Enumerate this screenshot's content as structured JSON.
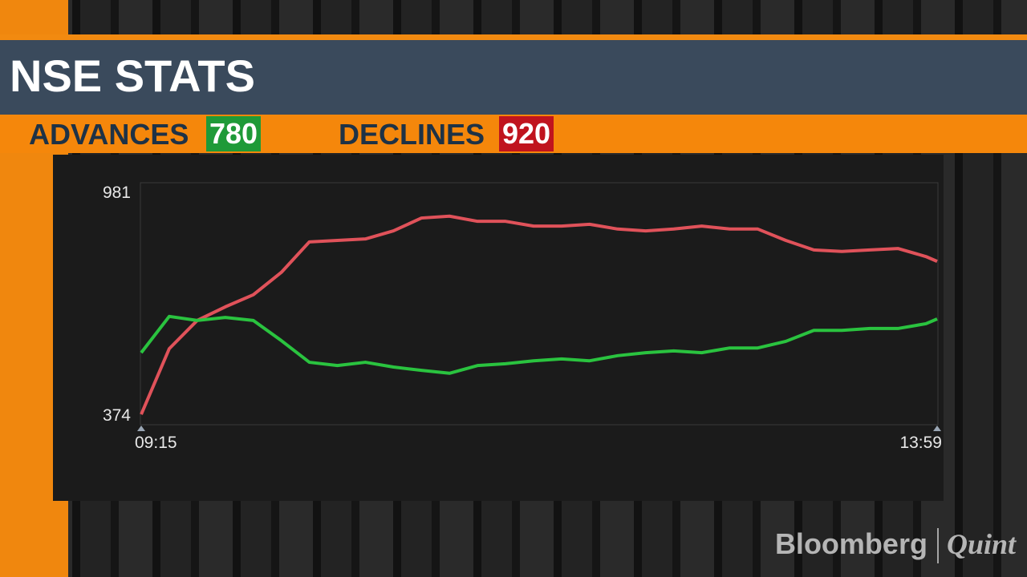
{
  "header": {
    "title": "NSE STATS"
  },
  "stats": {
    "advances": {
      "label": "ADVANCES",
      "value": 780
    },
    "declines": {
      "label": "DECLINES",
      "value": 920
    }
  },
  "logo": {
    "left": "Bloomberg",
    "right": "Quint"
  },
  "chart_data": {
    "type": "line",
    "x": [
      "09:15",
      "09:25",
      "09:35",
      "09:45",
      "09:55",
      "10:05",
      "10:15",
      "10:25",
      "10:35",
      "10:45",
      "10:55",
      "11:05",
      "11:15",
      "11:25",
      "11:35",
      "11:45",
      "11:55",
      "12:05",
      "12:15",
      "12:25",
      "12:35",
      "12:45",
      "12:55",
      "13:05",
      "13:15",
      "13:25",
      "13:35",
      "13:45",
      "13:55",
      "13:59"
    ],
    "xticks": [
      "09:15",
      "13:59"
    ],
    "series": [
      {
        "name": "Declines",
        "color": "#e0525a",
        "values": [
          376,
          555,
          632,
          669,
          702,
          763,
          846,
          850,
          854,
          876,
          911,
          916,
          902,
          902,
          889,
          889,
          894,
          881,
          876,
          881,
          889,
          881,
          881,
          850,
          824,
          820,
          824,
          828,
          806,
          793
        ]
      },
      {
        "name": "Advances",
        "color": "#2ac33f",
        "values": [
          544,
          643,
          632,
          640,
          632,
          577,
          518,
          509,
          518,
          505,
          496,
          488,
          509,
          514,
          522,
          527,
          522,
          536,
          544,
          549,
          544,
          557,
          557,
          575,
          605,
          605,
          610,
          610,
          623,
          636
        ]
      }
    ],
    "ylim": [
      374,
      981
    ],
    "yticks": [
      374,
      981
    ]
  }
}
